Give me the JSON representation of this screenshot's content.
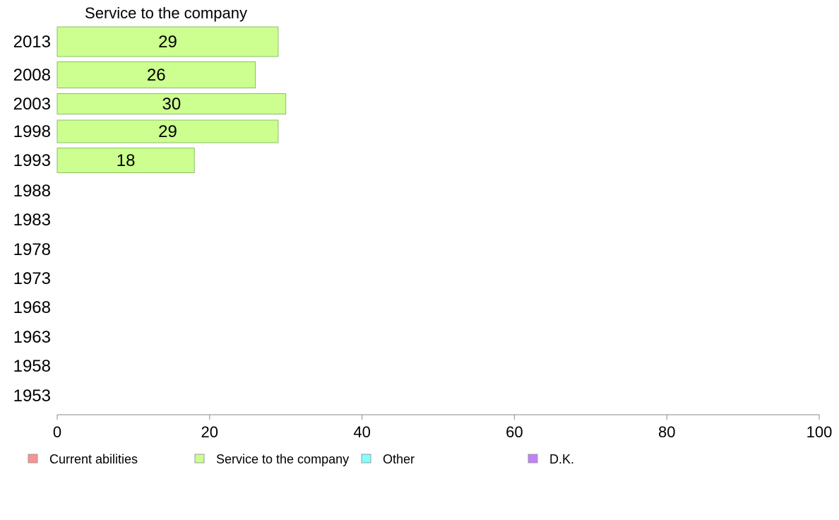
{
  "chart_data": {
    "type": "bar",
    "orientation": "horizontal",
    "title": "Service to the company",
    "xlabel": "",
    "ylabel": "",
    "xlim": [
      0,
      100
    ],
    "x_ticks": [
      0,
      20,
      40,
      60,
      80,
      100
    ],
    "categories": [
      "2013",
      "2008",
      "2003",
      "1998",
      "1993",
      "1988",
      "1983",
      "1978",
      "1973",
      "1968",
      "1963",
      "1958",
      "1953"
    ],
    "series": [
      {
        "name": "Service to the company",
        "color": "#ccff8f",
        "values": [
          29,
          26,
          30,
          29,
          18,
          null,
          null,
          null,
          null,
          null,
          null,
          null,
          null
        ]
      }
    ],
    "legend": {
      "placement": "bottom",
      "items": [
        {
          "label": "Current abilities",
          "color": "#ff9090"
        },
        {
          "label": "Service to the company",
          "color": "#ccff8f"
        },
        {
          "label": "Other",
          "color": "#80ffff"
        },
        {
          "label": "D.K.",
          "color": "#c080ff"
        }
      ]
    },
    "grid": false
  }
}
